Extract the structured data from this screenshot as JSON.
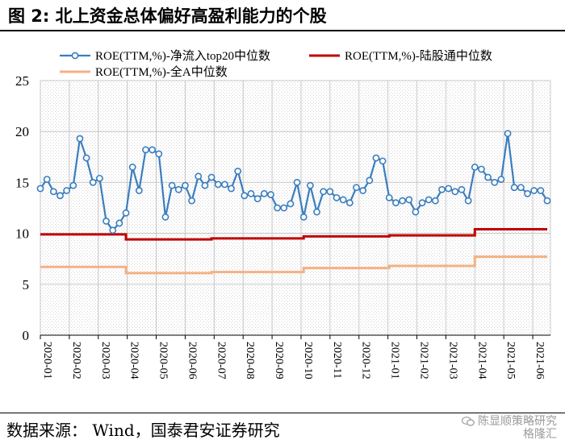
{
  "figure": {
    "title": "图 2:  北上资金总体偏好高盈利能力的个股",
    "source": "数据来源： Wind，国泰君安证券研究",
    "watermark_line1": "陈显顺策略研究",
    "watermark_line2": "格隆汇"
  },
  "colors": {
    "series1": "#3a7ebf",
    "series2": "#c00000",
    "series3": "#f4b183",
    "grid": "#c8c8c8"
  },
  "chart_data": {
    "type": "line",
    "ylim": [
      0,
      25
    ],
    "yticks": [
      0,
      5,
      10,
      15,
      20,
      25
    ],
    "grid": true,
    "legend_position": "top",
    "x_tick_labels": [
      "2020-01",
      "2020-02",
      "2020-03",
      "2020-04",
      "2020-05",
      "2020-06",
      "2020-07",
      "2020-08",
      "2020-09",
      "2020-10",
      "2020-11",
      "2020-12",
      "2021-01",
      "2021-02",
      "2021-03",
      "2021-04",
      "2021-05",
      "2021-06"
    ],
    "n_points": 78,
    "series": [
      {
        "name": "ROE(TTM,%)-净流入top20中位数",
        "style": "line-marker",
        "values": [
          14.4,
          15.3,
          14.1,
          13.7,
          14.2,
          14.7,
          19.3,
          17.4,
          15.0,
          15.4,
          11.2,
          10.3,
          11.0,
          12.0,
          16.5,
          14.2,
          18.2,
          18.2,
          17.8,
          11.6,
          14.7,
          14.3,
          14.7,
          13.2,
          15.6,
          14.7,
          15.5,
          14.8,
          14.8,
          14.4,
          16.1,
          13.7,
          13.9,
          13.4,
          13.9,
          13.8,
          12.5,
          12.5,
          12.9,
          15.0,
          11.6,
          14.7,
          12.1,
          14.1,
          14.1,
          13.5,
          13.3,
          13.0,
          14.5,
          14.2,
          15.2,
          17.4,
          17.1,
          13.5,
          13.0,
          13.2,
          13.3,
          12.1,
          13.0,
          13.3,
          13.2,
          14.3,
          14.4,
          14.1,
          14.3,
          13.2,
          16.5,
          16.3,
          15.5,
          15.0,
          15.3,
          19.8,
          14.5,
          14.5,
          13.9,
          14.2,
          14.2,
          13.2
        ]
      },
      {
        "name": "ROE(TTM,%)-陆股通中位数",
        "style": "step",
        "segments": [
          {
            "from_index": 0,
            "to_index": 13,
            "value": 9.9
          },
          {
            "from_index": 13,
            "to_index": 26,
            "value": 9.4
          },
          {
            "from_index": 26,
            "to_index": 40,
            "value": 9.5
          },
          {
            "from_index": 40,
            "to_index": 53,
            "value": 9.7
          },
          {
            "from_index": 53,
            "to_index": 66,
            "value": 9.8
          },
          {
            "from_index": 66,
            "to_index": 77,
            "value": 10.4
          }
        ]
      },
      {
        "name": "ROE(TTM,%)-全A中位数",
        "style": "step",
        "segments": [
          {
            "from_index": 0,
            "to_index": 13,
            "value": 6.7
          },
          {
            "from_index": 13,
            "to_index": 26,
            "value": 6.1
          },
          {
            "from_index": 26,
            "to_index": 40,
            "value": 6.2
          },
          {
            "from_index": 40,
            "to_index": 53,
            "value": 6.6
          },
          {
            "from_index": 53,
            "to_index": 66,
            "value": 6.8
          },
          {
            "from_index": 66,
            "to_index": 77,
            "value": 7.7
          }
        ]
      }
    ]
  }
}
